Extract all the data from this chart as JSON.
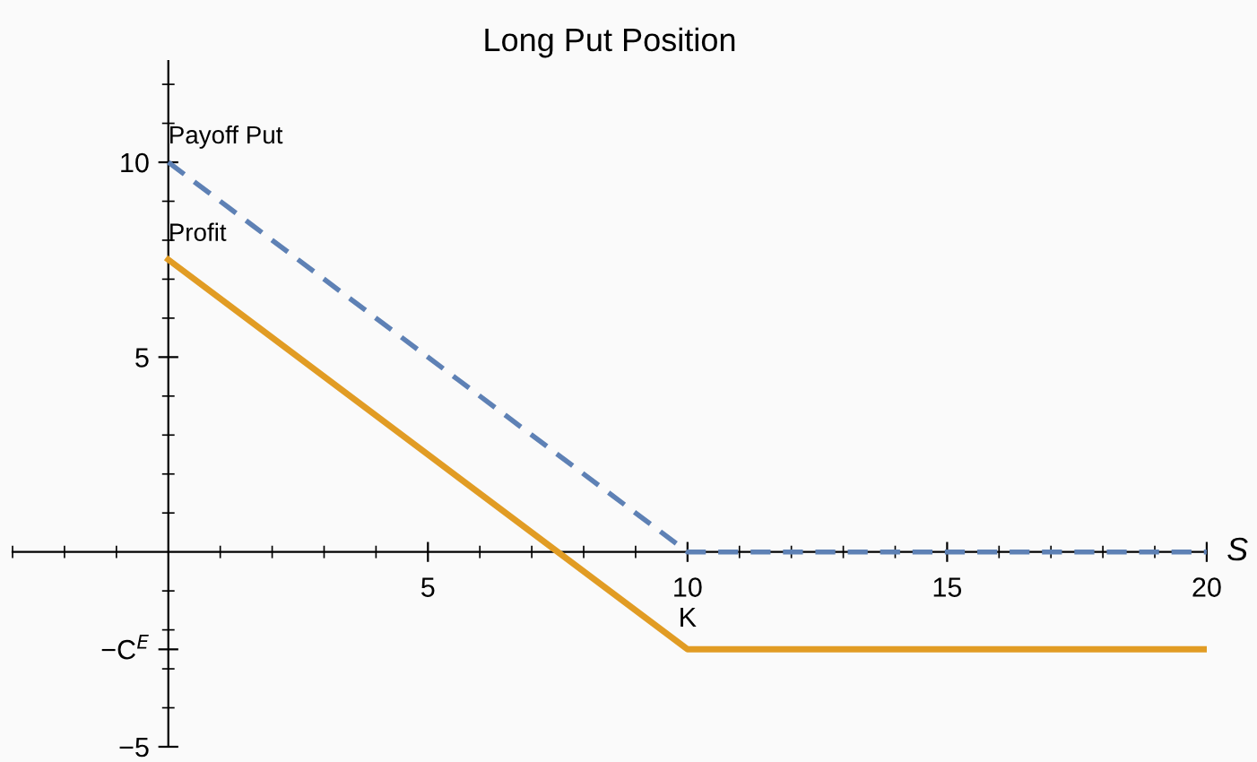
{
  "chart_data": {
    "type": "line",
    "title": "Long Put Position",
    "xlabel": "S",
    "x": [
      0,
      10,
      20
    ],
    "series": [
      {
        "name": "Payoff Put",
        "color": "#5e81b5",
        "values": [
          10,
          0,
          0
        ],
        "line_style": "dashed"
      },
      {
        "name": "Profit",
        "color": "#e19c24",
        "values": [
          7.5,
          -2.5,
          -2.5
        ],
        "line_style": "solid"
      }
    ],
    "annotations": [
      {
        "text": "K",
        "x": 10,
        "y": 0
      }
    ],
    "xlim": [
      -3,
      20
    ],
    "ylim": [
      -5,
      12.6
    ],
    "xticks": [
      {
        "value": -3,
        "label": null
      },
      {
        "value": -2,
        "label": null
      },
      {
        "value": -1,
        "label": null
      },
      {
        "value": 1,
        "label": null
      },
      {
        "value": 2,
        "label": null
      },
      {
        "value": 3,
        "label": null
      },
      {
        "value": 4,
        "label": null
      },
      5,
      {
        "value": 6,
        "label": null
      },
      {
        "value": 7,
        "label": null
      },
      {
        "value": 8,
        "label": null
      },
      {
        "value": 9,
        "label": null
      },
      10,
      {
        "value": 11,
        "label": null
      },
      {
        "value": 12,
        "label": null
      },
      {
        "value": 13,
        "label": null
      },
      {
        "value": 14,
        "label": null
      },
      15,
      {
        "value": 16,
        "label": null
      },
      {
        "value": 17,
        "label": null
      },
      {
        "value": 18,
        "label": null
      },
      {
        "value": 19,
        "label": null
      },
      20
    ],
    "yticks": [
      -5,
      {
        "value": -4,
        "label": null
      },
      {
        "value": -3,
        "label": null
      },
      {
        "value": -2.5,
        "label": "−C$^{E}$"
      },
      {
        "value": -2,
        "label": null
      },
      {
        "value": -1,
        "label": null
      },
      {
        "value": 1,
        "label": null
      },
      {
        "value": 2,
        "label": null
      },
      {
        "value": 3,
        "label": null
      },
      {
        "value": 4,
        "label": null
      },
      5,
      {
        "value": 6,
        "label": null
      },
      {
        "value": 7,
        "label": null
      },
      {
        "value": 8,
        "label": null
      },
      {
        "value": 9,
        "label": null
      },
      10,
      {
        "value": 11,
        "label": null
      },
      {
        "value": 12,
        "label": null
      }
    ],
    "grid": false,
    "legend": false,
    "marker": "none"
  }
}
